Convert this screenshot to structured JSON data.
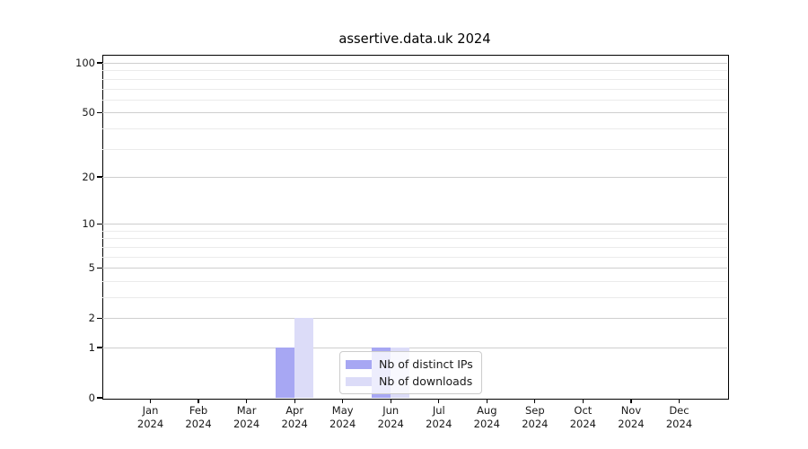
{
  "chart_data": {
    "type": "bar",
    "title": "assertive.data.uk 2024",
    "categories": [
      "Jan 2024",
      "Feb 2024",
      "Mar 2024",
      "Apr 2024",
      "May 2024",
      "Jun 2024",
      "Jul 2024",
      "Aug 2024",
      "Sep 2024",
      "Oct 2024",
      "Nov 2024",
      "Dec 2024"
    ],
    "series": [
      {
        "name": "Nb of distinct IPs",
        "color": "#a7a7f3",
        "values": [
          0,
          0,
          0,
          1,
          0,
          1,
          0,
          0,
          0,
          0,
          0,
          0
        ]
      },
      {
        "name": "Nb of downloads",
        "color": "#dcdcf8",
        "values": [
          0,
          0,
          0,
          2,
          0,
          1,
          0,
          0,
          0,
          0,
          0,
          0
        ]
      }
    ],
    "xlabel": "",
    "ylabel": "",
    "yscale": "log1p",
    "ylim": [
      0,
      112
    ],
    "y_major_ticks": [
      0,
      1,
      2,
      5,
      10,
      20,
      50,
      100
    ],
    "y_minor_gridlines": [
      3,
      4,
      6,
      7,
      8,
      9,
      30,
      40,
      60,
      70,
      80,
      90
    ],
    "grid": true,
    "grid_major_color": "#cecece",
    "grid_minor_color": "#ebebeb",
    "legend_position": "lower center",
    "axis_color": "#000000",
    "text_color": "#1a1a1a"
  }
}
